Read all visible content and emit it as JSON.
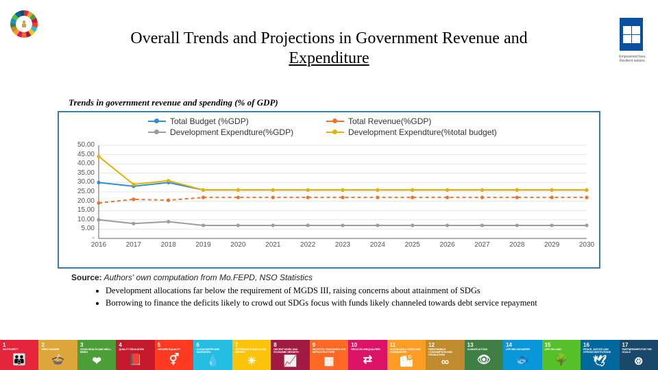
{
  "title_line1": "Overall Trends and Projections in Government Revenue and",
  "title_line2": "Expenditure",
  "subtitle": "Trends in government revenue and spending (% of GDP)",
  "source_label": "Source:",
  "source_text": " Authors' own computation from Mo.FEPD, NSO Statistics",
  "bullets": [
    "Development allocations far below the requirement of MGDS III, raising concerns about attainment of SDGs",
    "Borrowing to finance the deficits  likely to crowd out SDGs focus with funds likely channeled towards debt service repayment"
  ],
  "chart": {
    "type": "line",
    "legend": [
      {
        "label": "Total Budget (%GDP)",
        "color": "#2f8fd0"
      },
      {
        "label": "Total Revenue(%GDP)",
        "color": "#e9742f"
      },
      {
        "label": "Development Expendture(%GDP)",
        "color": "#9c9c9c"
      },
      {
        "label": "Development Expendture(%total budget)",
        "color": "#e0b400"
      }
    ],
    "ylim": [
      0,
      50
    ],
    "ytick_step": 5,
    "yticks": [
      "-",
      "5.00",
      "10.00",
      "15.00",
      "20.00",
      "25.00",
      "30.00",
      "35.00",
      "40.00",
      "45.00",
      "50.00"
    ],
    "xticks": [
      "2016",
      "2017",
      "2018",
      "2019",
      "2020",
      "2021",
      "2022",
      "2023",
      "2024",
      "2025",
      "2026",
      "2027",
      "2028",
      "2029",
      "2030"
    ],
    "series": [
      {
        "name": "total_budget",
        "color": "#2f8fd0",
        "dash": "0",
        "data": [
          30,
          28,
          30,
          26,
          26,
          26,
          26,
          26,
          26,
          26,
          26,
          26,
          26,
          26,
          26
        ]
      },
      {
        "name": "total_revenue",
        "color": "#e9742f",
        "dash": "5,4",
        "data": [
          19,
          21,
          20.5,
          22,
          22,
          22,
          22,
          22,
          22,
          22,
          22,
          22,
          22,
          22,
          22
        ]
      },
      {
        "name": "dev_exp_gdp",
        "color": "#9c9c9c",
        "dash": "0",
        "data": [
          10,
          8,
          9,
          7,
          7,
          7,
          7,
          7,
          7,
          7,
          7,
          7,
          7,
          7,
          7
        ]
      },
      {
        "name": "dev_exp_budget",
        "color": "#e0b400",
        "dash": "0",
        "data": [
          44,
          29,
          31,
          26,
          26,
          26,
          26,
          26,
          26,
          26,
          26,
          26,
          26,
          26,
          26
        ]
      }
    ],
    "grid_color": "#e6e6e6",
    "axis_color": "#666",
    "background_color": "#ffffff",
    "label_fontsize": 10,
    "legend_fontsize": 12,
    "marker_radius": 2.6
  },
  "sdg_tiles": [
    {
      "n": "1",
      "label": "NO POVERTY",
      "color": "#e5243b",
      "icon": "👪"
    },
    {
      "n": "2",
      "label": "ZERO HUNGER",
      "color": "#dda63a",
      "icon": "🍲"
    },
    {
      "n": "3",
      "label": "GOOD HEALTH AND WELL-BEING",
      "color": "#4c9f38",
      "icon": "❤"
    },
    {
      "n": "4",
      "label": "QUALITY EDUCATION",
      "color": "#c5192d",
      "icon": "📕"
    },
    {
      "n": "5",
      "label": "GENDER EQUALITY",
      "color": "#ff3a21",
      "icon": "⚥"
    },
    {
      "n": "6",
      "label": "CLEAN WATER AND SANITATION",
      "color": "#26bde2",
      "icon": "💧"
    },
    {
      "n": "7",
      "label": "AFFORDABLE AND CLEAN ENERGY",
      "color": "#fcc30b",
      "icon": "☀"
    },
    {
      "n": "8",
      "label": "DECENT WORK AND ECONOMIC GROWTH",
      "color": "#a21942",
      "icon": "📈"
    },
    {
      "n": "9",
      "label": "INDUSTRY, INNOVATION AND INFRASTRUCTURE",
      "color": "#fd6925",
      "icon": "▦"
    },
    {
      "n": "10",
      "label": "REDUCED INEQUALITIES",
      "color": "#dd1367",
      "icon": "⇄"
    },
    {
      "n": "11",
      "label": "SUSTAINABLE CITIES AND COMMUNITIES",
      "color": "#fd9d24",
      "icon": "🏙"
    },
    {
      "n": "12",
      "label": "RESPONSIBLE CONSUMPTION AND PRODUCTION",
      "color": "#bf8b2e",
      "icon": "∞"
    },
    {
      "n": "13",
      "label": "CLIMATE ACTION",
      "color": "#3f7e44",
      "icon": "👁"
    },
    {
      "n": "14",
      "label": "LIFE BELOW WATER",
      "color": "#0a97d9",
      "icon": "🐟"
    },
    {
      "n": "15",
      "label": "LIFE ON LAND",
      "color": "#56c02b",
      "icon": "🌳"
    },
    {
      "n": "16",
      "label": "PEACE, JUSTICE AND STRONG INSTITUTIONS",
      "color": "#00689d",
      "icon": "🕊"
    },
    {
      "n": "17",
      "label": "PARTNERSHIPS FOR THE GOALS",
      "color": "#19486a",
      "icon": "⊛"
    }
  ],
  "sdg_wheel_colors": [
    "#e5243b",
    "#dda63a",
    "#4c9f38",
    "#c5192d",
    "#ff3a21",
    "#26bde2",
    "#fcc30b",
    "#a21942",
    "#fd6925",
    "#dd1367",
    "#fd9d24",
    "#bf8b2e",
    "#3f7e44",
    "#0a97d9",
    "#56c02b",
    "#00689d",
    "#19486a"
  ],
  "undp_sub": "Empowered lives. Resilient nations."
}
